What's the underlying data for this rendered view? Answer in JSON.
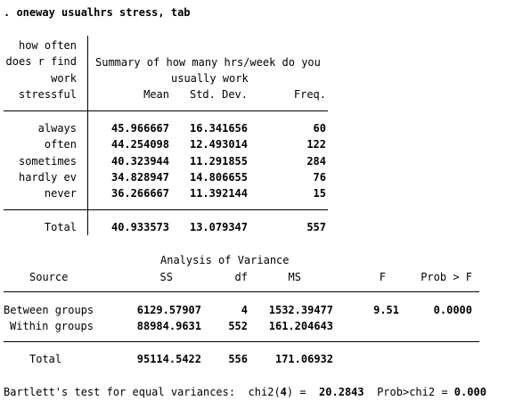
{
  "command": ". oneway usualhrs stress, tab",
  "summary": {
    "row_header": [
      "how often",
      "does r find",
      "work",
      "stressful"
    ],
    "title_line1": "Summary of how many hrs/week do you",
    "title_line2": "usually work",
    "columns": [
      "Mean",
      "Std. Dev.",
      "Freq."
    ],
    "rows": [
      {
        "label": "always",
        "mean": "45.966667",
        "sd": "16.341656",
        "freq": "60"
      },
      {
        "label": "often",
        "mean": "44.254098",
        "sd": "12.493014",
        "freq": "122"
      },
      {
        "label": "sometimes",
        "mean": "40.323944",
        "sd": "11.291855",
        "freq": "284"
      },
      {
        "label": "hardly ev",
        "mean": "34.828947",
        "sd": "14.806655",
        "freq": "76"
      },
      {
        "label": "never",
        "mean": "36.266667",
        "sd": "11.392144",
        "freq": "15"
      }
    ],
    "total": {
      "label": "Total",
      "mean": "40.933573",
      "sd": "13.079347",
      "freq": "557"
    }
  },
  "anova": {
    "title": "Analysis of Variance",
    "columns": {
      "source": "Source",
      "ss": "SS",
      "df": "df",
      "ms": "MS",
      "f": "F",
      "p": "Prob > F"
    },
    "rows": [
      {
        "label": "Between groups",
        "ss": "6129.57907",
        "df": "4",
        "ms": "1532.39477",
        "f": "9.51",
        "p": "0.0000"
      },
      {
        "label": "Within groups",
        "ss": "88984.9631",
        "df": "552",
        "ms": "161.204643",
        "f": "",
        "p": ""
      }
    ],
    "total": {
      "label": "Total",
      "ss": "95114.5422",
      "df": "556",
      "ms": "171.06932"
    }
  },
  "bartlett": {
    "text": "Bartlett's test for equal variances:",
    "chi2_label_pre": "chi2(",
    "chi2_df": "4",
    "chi2_label_post": ") =",
    "chi2_value": "20.2843",
    "prob_label": "Prob>chi2 =",
    "prob_value": "0.000"
  }
}
